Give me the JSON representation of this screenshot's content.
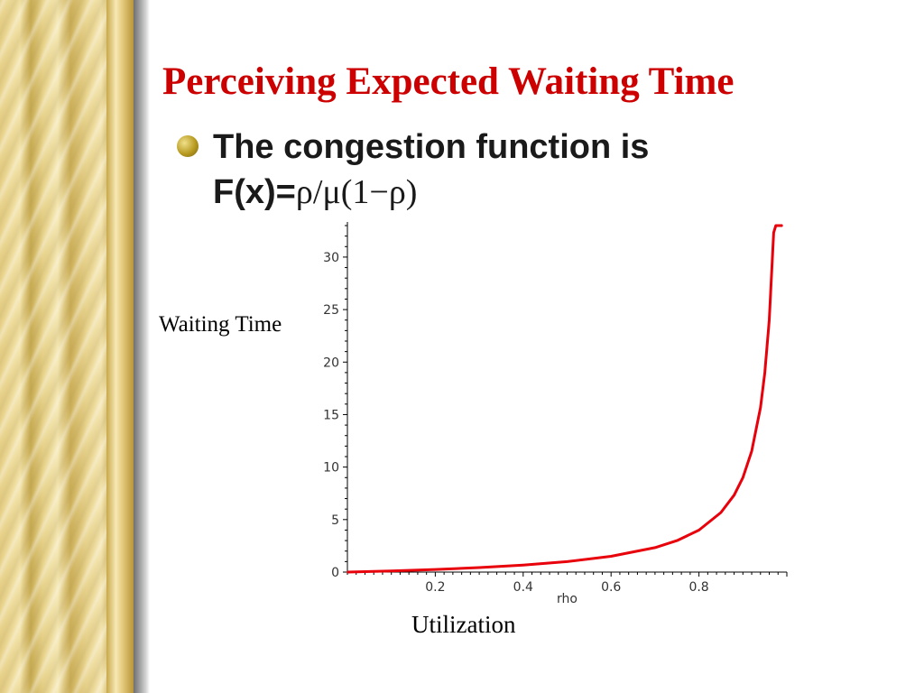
{
  "slide": {
    "title": "Perceiving Expected Waiting Time",
    "bullet_line1": "The congestion function is",
    "formula_prefix": "F(x)=",
    "formula_expr": "ρ/μ(1−ρ)",
    "y_axis_label": "Waiting Time",
    "x_axis_label": "Utilization"
  },
  "colors": {
    "title": "#cc0000",
    "curve": "#e8000b",
    "bullet": "#b89a20"
  },
  "chart_data": {
    "type": "line",
    "title": "",
    "xlabel": "rho",
    "ylabel": "",
    "xlim": [
      0,
      1
    ],
    "ylim": [
      0,
      33
    ],
    "x_ticks": [
      0.2,
      0.4,
      0.6,
      0.8
    ],
    "x_tick_labels": [
      "0.2",
      "0.4",
      "0.6",
      "0.8"
    ],
    "y_ticks": [
      0,
      5,
      10,
      15,
      20,
      25,
      30
    ],
    "y_tick_labels": [
      "0",
      "5",
      "10",
      "15",
      "20",
      "25",
      "30"
    ],
    "grid": false,
    "series": [
      {
        "x": [
          0.0,
          0.1,
          0.2,
          0.3,
          0.4,
          0.5,
          0.6,
          0.7,
          0.75,
          0.8,
          0.85,
          0.88,
          0.9,
          0.92,
          0.94,
          0.95,
          0.96,
          0.97,
          0.975,
          0.98,
          0.985,
          0.99
        ],
        "y": [
          0.0,
          0.11,
          0.25,
          0.43,
          0.67,
          1.0,
          1.5,
          2.33,
          3.0,
          4.0,
          5.67,
          7.33,
          9.0,
          11.5,
          15.67,
          19.0,
          24.0,
          32.33,
          33.0,
          33.0,
          33.0,
          33.0
        ]
      }
    ]
  }
}
